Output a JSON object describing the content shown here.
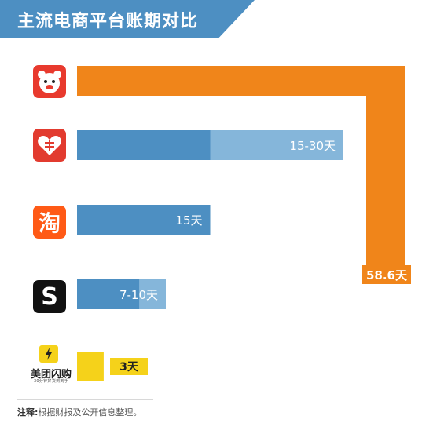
{
  "title": "主流电商平台账期对比",
  "footnote": {
    "label": "注释:",
    "text": "根据财报及公开信息整理。"
  },
  "logos": {
    "taobao_glyph": "淘",
    "douyin_glyph": "S",
    "meituan_name": "美团闪购",
    "meituan_slogan": "30分钟好货到到手"
  },
  "colors": {
    "banner": "#4d8fc2",
    "bar_dark": "#4d8fc2",
    "bar_light": "#85b6da",
    "jd_orange": "#f0851a",
    "meituan_yellow": "#f5d21a"
  },
  "chart_data": {
    "type": "bar",
    "orientation": "horizontal",
    "title": "主流电商平台账期对比",
    "categories": [
      "京东",
      "拼多多",
      "淘宝",
      "抖音",
      "美团闪购"
    ],
    "values_days": [
      58.6,
      30,
      15,
      10,
      3
    ],
    "ranges_days": [
      [
        58.6,
        58.6
      ],
      [
        15,
        30
      ],
      [
        15,
        15
      ],
      [
        7,
        10
      ],
      [
        3,
        3
      ]
    ],
    "data_labels": [
      "58.6天",
      "15-30天",
      "15天",
      "7-10天",
      "3天"
    ],
    "note": "注释:根据财报及公开信息整理。"
  }
}
